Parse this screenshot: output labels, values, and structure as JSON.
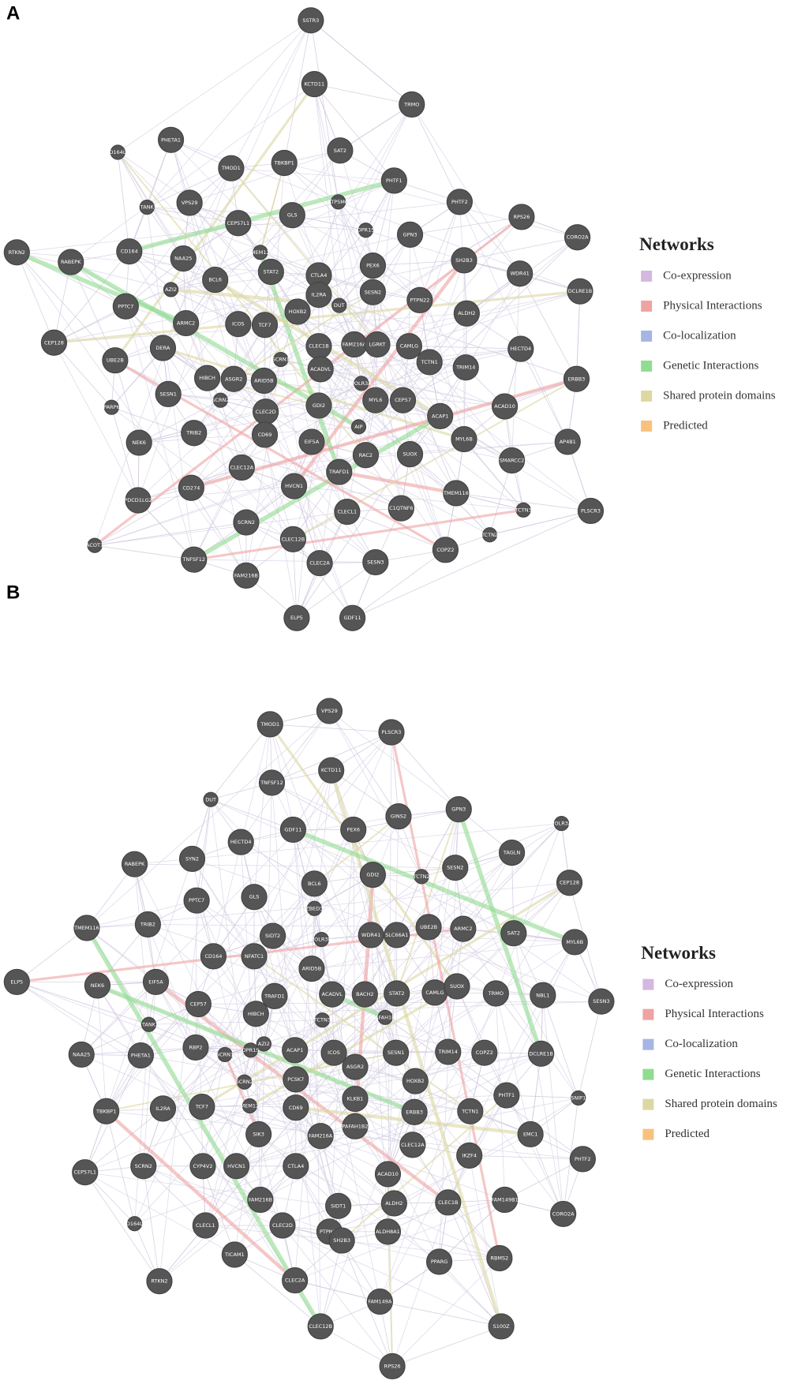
{
  "panels": [
    {
      "label": "A",
      "legend": {
        "title": "Networks",
        "items": [
          {
            "name": "Co-expression",
            "color": "#d4b8e0"
          },
          {
            "name": "Physical Interactions",
            "color": "#f0a3a3"
          },
          {
            "name": "Co-localization",
            "color": "#a6b6e2"
          },
          {
            "name": "Genetic Interactions",
            "color": "#90dc90"
          },
          {
            "name": "Shared protein domains",
            "color": "#dcd8a2"
          },
          {
            "name": "Predicted",
            "color": "#f8c27e"
          }
        ]
      },
      "nodes": [
        "SSTR3",
        "KCTD11",
        "TRMO",
        "PHETA1",
        "SAT2",
        "FD164L2",
        "TMOD1",
        "TBKBP1",
        "PHTF1",
        "PHTF2",
        "VPS29",
        "TANK",
        "GLS",
        "ATP5MG",
        "CEP57L1",
        "RPS26",
        "CORO2A",
        "RTKN2",
        "CD164",
        "TMEM123",
        "GPN3",
        "OPR15",
        "RABEPK",
        "NAA25",
        "STAT2",
        "CTLA4",
        "SH2B3",
        "WDR41",
        "PEX6",
        "DCLRE1B",
        "BCL6",
        "AZI2",
        "IL2RA",
        "SESN2",
        "PTPN22",
        "PPTC7",
        "ARMC2",
        "ICOS",
        "TCF7",
        "HOXB2",
        "DUT",
        "ALDH2",
        "CEP128",
        "UBE2B",
        "DERA",
        "CLEC1B",
        "FAM216A",
        "LGRKT",
        "CAMLG",
        "HECTD4",
        "ACADVL",
        "TCTN1",
        "TRIM14",
        "SCRN1",
        "ERBB3",
        "HIBCH",
        "ASGR2",
        "ARID5B",
        "POLR3A",
        "CEP57",
        "SESN1",
        "GDI2",
        "MYL6",
        "ACAD10",
        "PARP6",
        "SCRN2",
        "CLEC2D",
        "AIP",
        "ACAP1",
        "TRIB2",
        "CD69",
        "EIF5A",
        "MYL6B",
        "NEK6",
        "AP4B1",
        "RAC2",
        "SUOX",
        "SMARCC2",
        "CLEC12A",
        "TRAFD1",
        "CD274",
        "HVCN1",
        "TMEM116",
        "PDCD1LG2",
        "CLECL1",
        "C1QTNF6",
        "TCTN3",
        "PLSCR3",
        "SCRN2",
        "CLEC12B",
        "TCTN2",
        "COPZ2",
        "ACOT1",
        "TNFSF12",
        "CLEC2A",
        "SESN3",
        "FAM216B",
        "ELP5",
        "GDF11"
      ]
    },
    {
      "label": "B",
      "legend": {
        "title": "Networks",
        "items": [
          {
            "name": "Co-expression",
            "color": "#d4b8e0"
          },
          {
            "name": "Physical Interactions",
            "color": "#f0a3a3"
          },
          {
            "name": "Co-localization",
            "color": "#a6b6e2"
          },
          {
            "name": "Genetic Interactions",
            "color": "#90dc90"
          },
          {
            "name": "Shared protein domains",
            "color": "#dcd8a2"
          },
          {
            "name": "Predicted",
            "color": "#f8c27e"
          }
        ]
      },
      "nodes": [
        "VPS29",
        "TMOD1",
        "PLSCR3",
        "KCTD11",
        "TNFSF12",
        "GPN3",
        "DUT",
        "GINS2",
        "POLR3A",
        "GDF11",
        "PEX6",
        "HECTD4",
        "GDI2",
        "TCTN2",
        "SESN2",
        "TAGLN",
        "CEP128",
        "RABEPK",
        "SYN2",
        "BCL6",
        "ZBED3",
        "PPTC7",
        "GLS",
        "TMEM116",
        "TRIB2",
        "SIDT2",
        "POLR3H",
        "WDR41",
        "SLC66A1",
        "UBE2B",
        "ARMC2",
        "SAT2",
        "MYL6B",
        "CD164",
        "NFATC1",
        "ARID5B",
        "ELP5",
        "NEK6",
        "EIF5A",
        "TRAFD1",
        "ACADVL",
        "BACH2",
        "STAT2",
        "CAMLG",
        "SUOX",
        "TRMO",
        "NBL1",
        "SESN3",
        "CEP57",
        "HIBCH",
        "TCTN3",
        "PAFAH1B3",
        "TANK",
        "NAA25",
        "PHETA1",
        "RBP2",
        "AZI2",
        "OPR15",
        "SCRN1",
        "ACAP1",
        "ICOS",
        "ASGR2",
        "SESN1",
        "TRIM14",
        "COPZ2",
        "DCLRE1B",
        "HOXB2",
        "PCSK7",
        "SCRN2",
        "TBKBP1",
        "IL2RA",
        "TCF7",
        "TMEM123",
        "CD69",
        "KLKB1",
        "ERBB3",
        "TCTN1",
        "PHTF1",
        "SNIP1",
        "SIK3",
        "FAM216A",
        "PAFAH1B2",
        "CLEC12A",
        "EMC1",
        "IKZF4",
        "CEP57L1",
        "SCRN2",
        "CYP4V2",
        "HVCN1",
        "CTLA4",
        "ACAD10",
        "PHTF2",
        "FAM149B1",
        "FAM216B",
        "SIDT1",
        "CLEC2D",
        "ALDH2",
        "CLEC1B",
        "FD164L2",
        "CLECL1",
        "PTPN22",
        "ALDH8A1",
        "CORO2A",
        "TICAM1",
        "SH2B3",
        "PPARG",
        "RBMS2",
        "RTKN2",
        "CLEC2A",
        "FAM149A",
        "CLEC12B",
        "S100Z",
        "RPS26"
      ]
    }
  ]
}
